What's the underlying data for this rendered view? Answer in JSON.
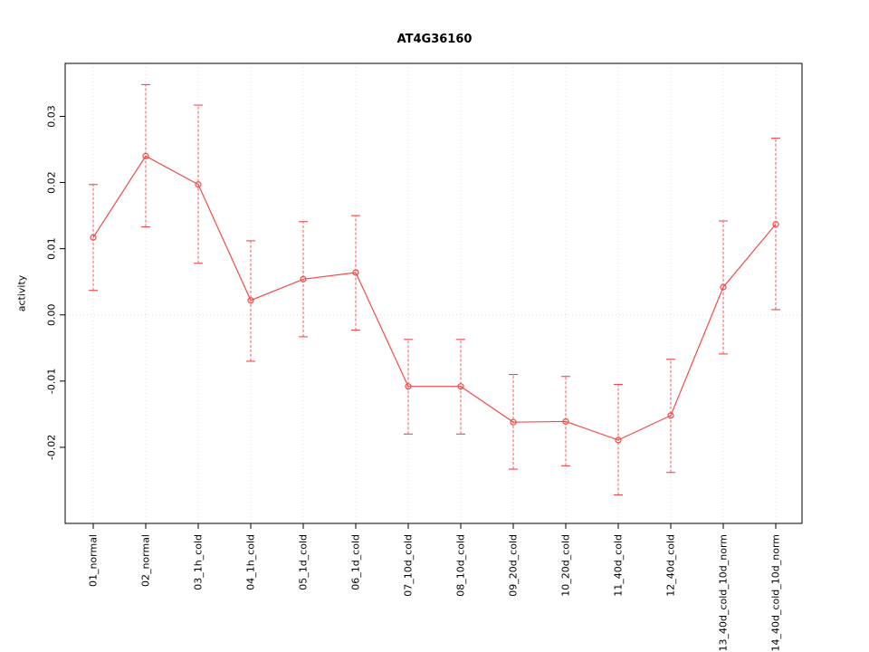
{
  "chart_data": {
    "type": "line",
    "title": "AT4G36160",
    "xlabel": "",
    "ylabel": "activity",
    "ylim": [
      -0.0315,
      0.038
    ],
    "yticks": [
      -0.02,
      -0.01,
      0,
      0.01,
      0.02,
      0.03
    ],
    "ytick_labels": [
      "-0.02",
      "-0.01",
      "0.00",
      "0.01",
      "0.02",
      "0.03"
    ],
    "grid": "dotted vertical line per category plus dotted horizontal line at y=0",
    "legend": "none",
    "categories": [
      "01_normal",
      "02_normal",
      "03_1h_cold",
      "04_1h_cold",
      "05_1d_cold",
      "06_1d_cold",
      "07_10d_cold",
      "08_10d_cold",
      "09_20d_cold",
      "10_20d_cold",
      "11_40d_cold",
      "12_40d_cold",
      "13_40d_cold_10d_norm",
      "14_40d_cold_10d_norm"
    ],
    "series": [
      {
        "name": "activity",
        "marker": "open-circle",
        "values": [
          0.0117,
          0.024,
          0.0197,
          0.0022,
          0.0054,
          0.0064,
          -0.0108,
          -0.0108,
          -0.0162,
          -0.0161,
          -0.0189,
          -0.0152,
          0.0042,
          0.0137
        ],
        "lower": [
          0.0037,
          0.0133,
          0.0078,
          -0.007,
          -0.0033,
          -0.0023,
          -0.018,
          -0.018,
          -0.0233,
          -0.0228,
          -0.0272,
          -0.0238,
          -0.0059,
          0.0008
        ],
        "upper": [
          0.0197,
          0.0348,
          0.0317,
          0.0112,
          0.0141,
          0.015,
          -0.0037,
          -0.0037,
          -0.009,
          -0.0093,
          -0.0105,
          -0.0067,
          0.0142,
          0.0267
        ]
      }
    ],
    "colors": {
      "series": "#f04b4b",
      "grid": "#d9d9d9",
      "box": "#000000",
      "text": "#000000",
      "background": "#ffffff"
    }
  }
}
